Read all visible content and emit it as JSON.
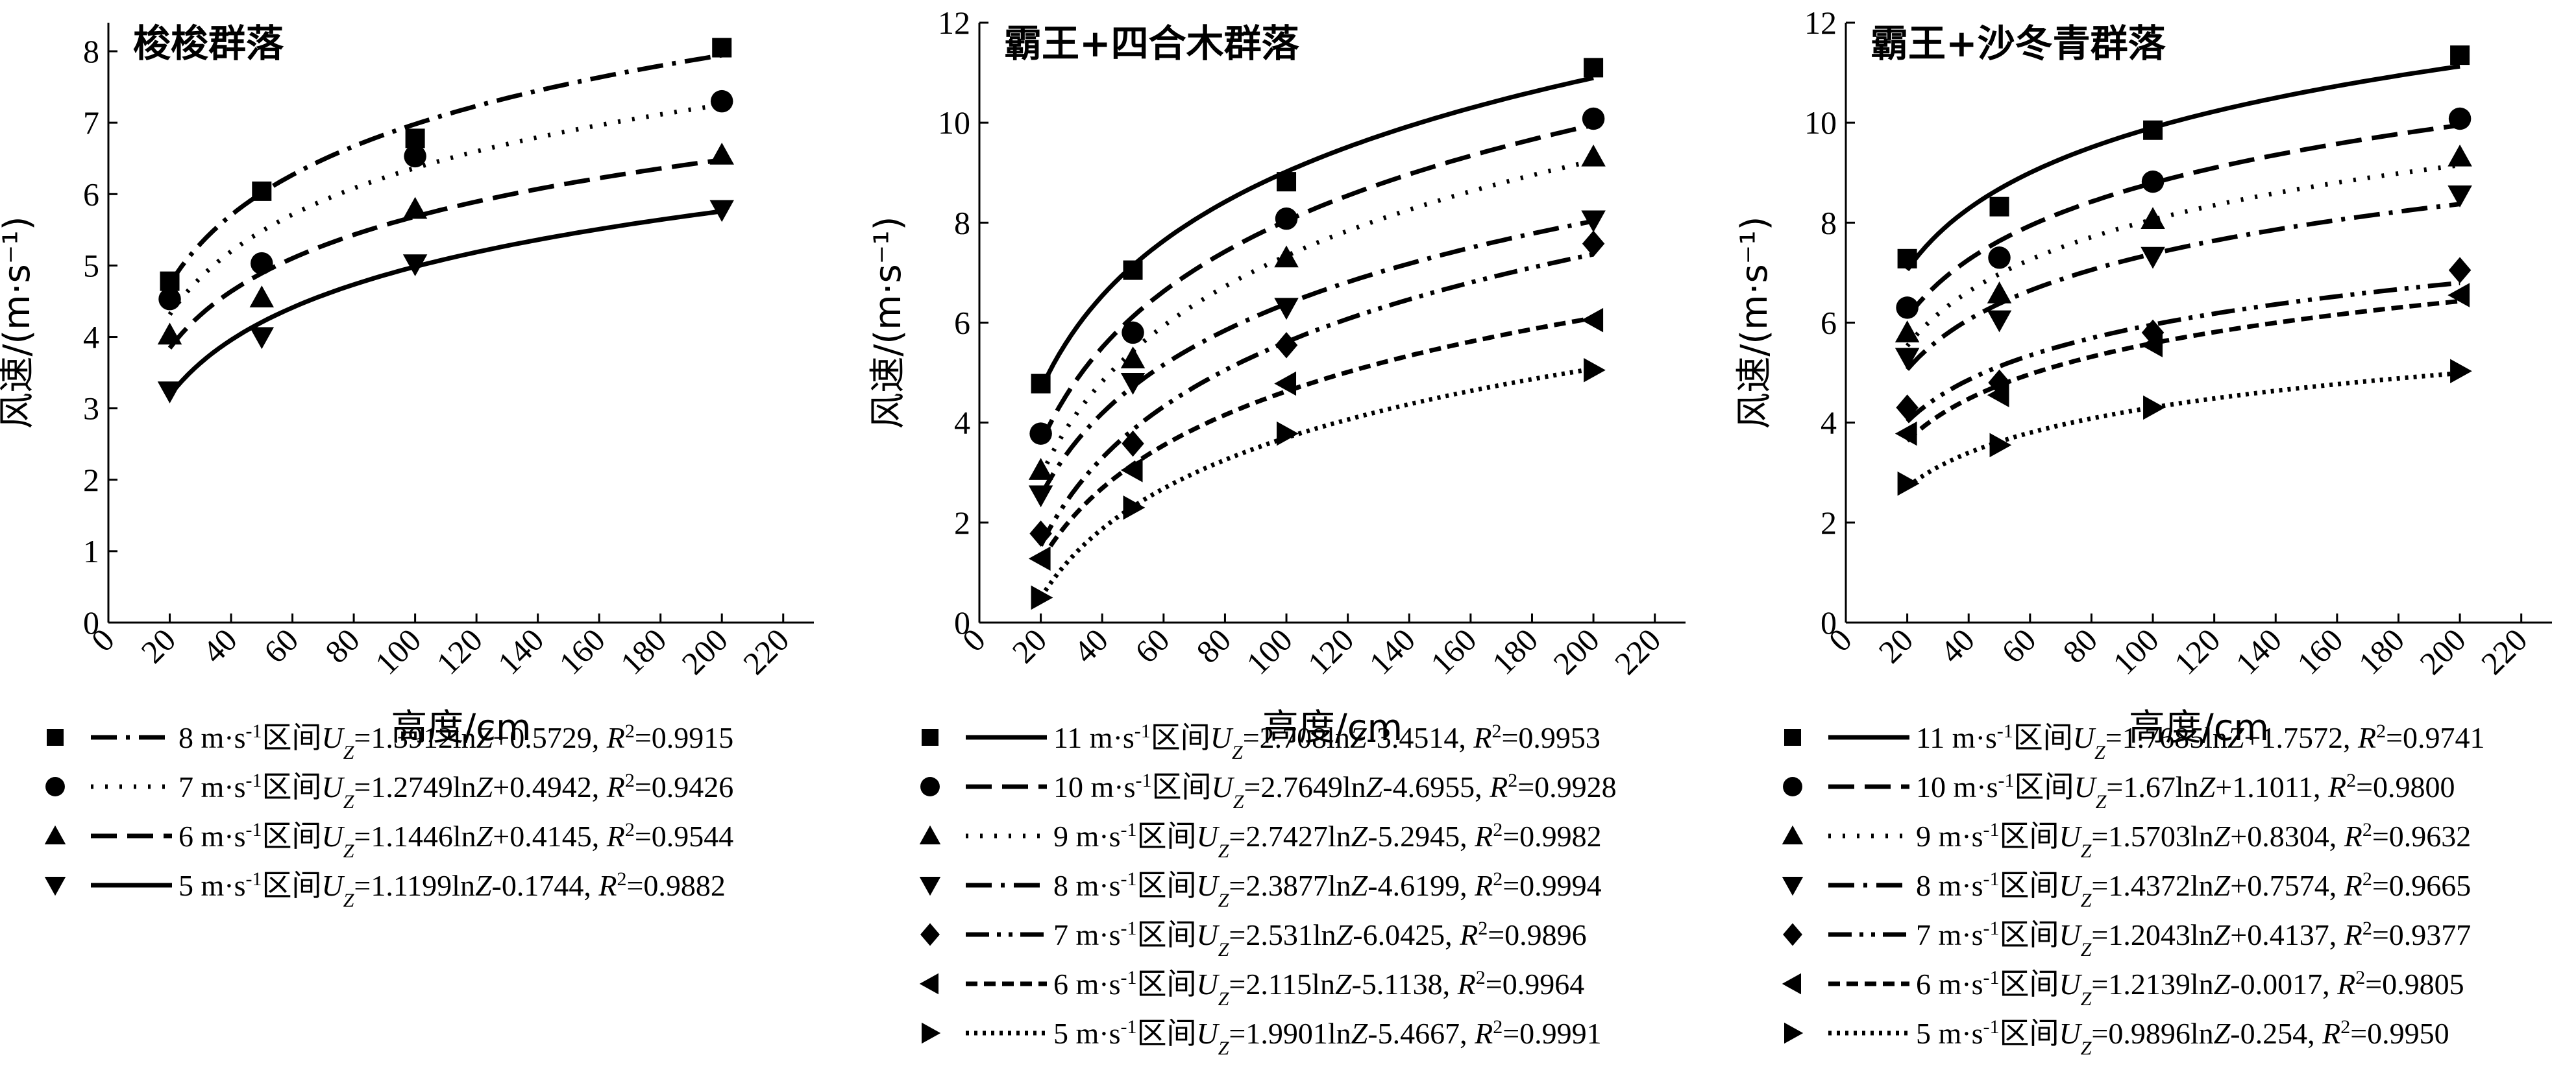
{
  "chart_data": [
    {
      "type": "scatter",
      "title": "梭梭群落",
      "xlabel": "高度/cm",
      "ylabel": "风速/(m·s⁻¹)",
      "xlim": [
        0,
        230
      ],
      "ylim": [
        0,
        8.4
      ],
      "xticks": [
        "0",
        "20",
        "40",
        "60",
        "80",
        "100",
        "120",
        "140",
        "160",
        "180",
        "200",
        "220"
      ],
      "yticks": [
        "0",
        "1",
        "2",
        "3",
        "4",
        "5",
        "6",
        "7",
        "8"
      ],
      "legend_position": "below",
      "series": [
        {
          "marker": "square",
          "dash": "dashdot",
          "a": 1.3912,
          "b": 0.5729,
          "legend_lead": "8 m·s",
          "eq_coef": "=1.3912ln",
          "eq_tail": "+0.5729, ",
          "r2": "=0.9915",
          "x": [
            20,
            50,
            100,
            200
          ],
          "y": [
            4.78,
            6.04,
            6.78,
            8.05
          ]
        },
        {
          "marker": "circle",
          "dash": "dotted",
          "a": 1.2749,
          "b": 0.4942,
          "legend_lead": "7 m·s",
          "eq_coef": "=1.2749ln",
          "eq_tail": "+0.4942, ",
          "r2": "=0.9426",
          "x": [
            20,
            50,
            100,
            200
          ],
          "y": [
            4.53,
            5.03,
            6.53,
            7.3
          ]
        },
        {
          "marker": "triangle-up",
          "dash": "dashed",
          "a": 1.1446,
          "b": 0.4145,
          "legend_lead": "6 m·s",
          "eq_coef": "=1.1446ln",
          "eq_tail": "+0.4145, ",
          "r2": "=0.9544",
          "x": [
            20,
            50,
            100,
            200
          ],
          "y": [
            4.03,
            4.55,
            5.79,
            6.55
          ]
        },
        {
          "marker": "triangle-down",
          "dash": "solid",
          "a": 1.1199,
          "b": -0.1744,
          "legend_lead": "5 m·s",
          "eq_coef": "=1.1199ln",
          "eq_tail": "-0.1744, ",
          "r2": "=0.9882",
          "x": [
            20,
            50,
            100,
            200
          ],
          "y": [
            3.24,
            4.0,
            5.02,
            5.78
          ]
        }
      ]
    },
    {
      "type": "scatter",
      "title": "霸王+四合木群落",
      "xlabel": "高度/cm",
      "ylabel": "风速/(m·s⁻¹)",
      "xlim": [
        0,
        230
      ],
      "ylim": [
        0,
        12
      ],
      "xticks": [
        "0",
        "20",
        "40",
        "60",
        "80",
        "100",
        "120",
        "140",
        "160",
        "180",
        "200",
        "220"
      ],
      "yticks": [
        "0",
        "2",
        "4",
        "6",
        "8",
        "10",
        "12"
      ],
      "legend_position": "below",
      "series": [
        {
          "marker": "square",
          "dash": "solid",
          "a": 2.708,
          "b": -3.4514,
          "legend_lead": "11 m·s",
          "eq_coef": "=2.708ln",
          "eq_tail": "-3.4514, ",
          "r2": "=0.9953",
          "x": [
            20,
            50,
            100,
            200
          ],
          "y": [
            4.78,
            7.05,
            8.82,
            11.1
          ]
        },
        {
          "marker": "circle",
          "dash": "dashed",
          "a": 2.7649,
          "b": -4.6955,
          "legend_lead": "10 m·s",
          "eq_coef": "=2.7649ln",
          "eq_tail": "-4.6955, ",
          "r2": "=0.9928",
          "x": [
            20,
            50,
            100,
            200
          ],
          "y": [
            3.78,
            5.8,
            8.08,
            10.08
          ]
        },
        {
          "marker": "triangle-up",
          "dash": "dotted",
          "a": 2.7427,
          "b": -5.2945,
          "legend_lead": "9 m·s",
          "eq_coef": "=2.7427ln",
          "eq_tail": "-5.2945, ",
          "r2": "=0.9982",
          "x": [
            20,
            50,
            100,
            200
          ],
          "y": [
            3.05,
            5.28,
            7.3,
            9.32
          ]
        },
        {
          "marker": "triangle-down",
          "dash": "dashdot",
          "a": 2.3877,
          "b": -4.6199,
          "legend_lead": "8 m·s",
          "eq_coef": "=2.3877ln",
          "eq_tail": "-4.6199, ",
          "r2": "=0.9994",
          "x": [
            20,
            50,
            100,
            200
          ],
          "y": [
            2.55,
            4.8,
            6.3,
            8.05
          ]
        },
        {
          "marker": "diamond",
          "dash": "dashdotdot",
          "a": 2.531,
          "b": -6.0425,
          "legend_lead": "7 m·s",
          "eq_coef": "=2.531ln",
          "eq_tail": "-6.0425, ",
          "r2": "=0.9896",
          "x": [
            20,
            50,
            100,
            200
          ],
          "y": [
            1.78,
            3.58,
            5.55,
            7.58
          ]
        },
        {
          "marker": "triangle-left",
          "dash": "shortdash",
          "a": 2.115,
          "b": -5.1138,
          "legend_lead": "6 m·s",
          "eq_coef": "=2.115ln",
          "eq_tail": "-5.1138, ",
          "r2": "=0.9964",
          "x": [
            20,
            50,
            100,
            200
          ],
          "y": [
            1.28,
            3.05,
            4.78,
            6.05
          ]
        },
        {
          "marker": "triangle-right",
          "dash": "densedot",
          "a": 1.9901,
          "b": -5.4667,
          "legend_lead": "5 m·s",
          "eq_coef": "=1.9901ln",
          "eq_tail": "-5.4667, ",
          "r2": "=0.9991",
          "x": [
            20,
            50,
            100,
            200
          ],
          "y": [
            0.5,
            2.3,
            3.78,
            5.05
          ]
        }
      ]
    },
    {
      "type": "scatter",
      "title": "霸王+沙冬青群落",
      "xlabel": "高度/cm",
      "ylabel": "风速/(m·s⁻¹)",
      "xlim": [
        0,
        230
      ],
      "ylim": [
        0,
        12
      ],
      "xticks": [
        "0",
        "20",
        "40",
        "60",
        "80",
        "100",
        "120",
        "140",
        "160",
        "180",
        "200",
        "220"
      ],
      "yticks": [
        "0",
        "2",
        "4",
        "6",
        "8",
        "10",
        "12"
      ],
      "legend_position": "below",
      "series": [
        {
          "marker": "square",
          "dash": "solid",
          "a": 1.7685,
          "b": 1.7572,
          "legend_lead": "11 m·s",
          "eq_coef": "=1.7685ln",
          "eq_tail": "+1.7572, ",
          "r2": "=0.9741",
          "x": [
            20,
            50,
            100,
            200
          ],
          "y": [
            7.28,
            8.32,
            9.85,
            11.35
          ]
        },
        {
          "marker": "circle",
          "dash": "dashed",
          "a": 1.67,
          "b": 1.1011,
          "legend_lead": "10 m·s",
          "eq_coef": "=1.67ln",
          "eq_tail": "+1.1011, ",
          "r2": "=0.9800",
          "x": [
            20,
            50,
            100,
            200
          ],
          "y": [
            6.3,
            7.3,
            8.82,
            10.08
          ]
        },
        {
          "marker": "triangle-up",
          "dash": "dotted",
          "a": 1.5703,
          "b": 0.8304,
          "legend_lead": "9 m·s",
          "eq_coef": "=1.5703ln",
          "eq_tail": "+0.8304, ",
          "r2": "=0.9632",
          "x": [
            20,
            50,
            100,
            200
          ],
          "y": [
            5.8,
            6.58,
            8.07,
            9.32
          ]
        },
        {
          "marker": "triangle-down",
          "dash": "dashdot",
          "a": 1.4372,
          "b": 0.7574,
          "legend_lead": "8 m·s",
          "eq_coef": "=1.4372ln",
          "eq_tail": "+0.7574, ",
          "r2": "=0.9665",
          "x": [
            20,
            50,
            100,
            200
          ],
          "y": [
            5.3,
            6.05,
            7.32,
            8.55
          ]
        },
        {
          "marker": "diamond",
          "dash": "dashdotdot",
          "a": 1.2043,
          "b": 0.4137,
          "legend_lead": "7 m·s",
          "eq_coef": "=1.2043ln",
          "eq_tail": "+0.4137, ",
          "r2": "=0.9377",
          "x": [
            20,
            50,
            100,
            200
          ],
          "y": [
            4.3,
            4.8,
            5.8,
            7.05
          ]
        },
        {
          "marker": "triangle-left",
          "dash": "shortdash",
          "a": 1.2139,
          "b": -0.0017,
          "legend_lead": "6 m·s",
          "eq_coef": "=1.2139ln",
          "eq_tail": "-0.0017, ",
          "r2": "=0.9805",
          "x": [
            20,
            50,
            100,
            200
          ],
          "y": [
            3.78,
            4.55,
            5.55,
            6.55
          ]
        },
        {
          "marker": "triangle-right",
          "dash": "densedot",
          "a": 0.9896,
          "b": -0.254,
          "legend_lead": "5 m·s",
          "eq_coef": "=0.9896ln",
          "eq_tail": "-0.254, ",
          "r2": "=0.9950",
          "x": [
            20,
            50,
            100,
            200
          ],
          "y": [
            2.78,
            3.55,
            4.3,
            5.03
          ]
        }
      ]
    }
  ],
  "legend_common": {
    "unit_sup": "-1",
    "interval_word": "区间",
    "u_symbol": "U",
    "u_sub": "Z",
    "z_symbol": "Z",
    "r_symbol": "R",
    "r_sup": "2"
  }
}
